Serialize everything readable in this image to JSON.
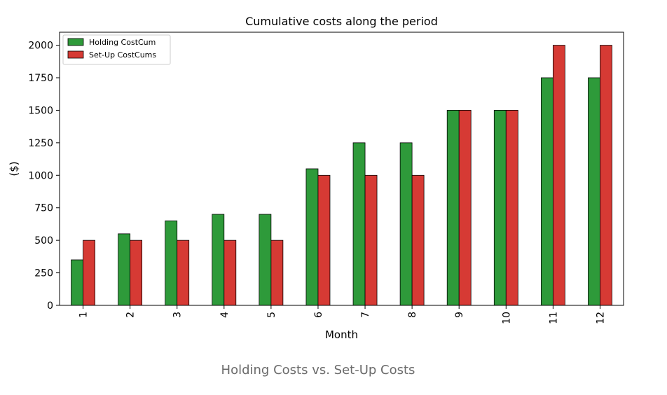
{
  "caption": "Holding Costs vs. Set-Up Costs",
  "chart_data": {
    "type": "bar",
    "title": "Cumulative costs along the period",
    "xlabel": "Month",
    "ylabel": "($)",
    "categories": [
      "1",
      "2",
      "3",
      "4",
      "5",
      "6",
      "7",
      "8",
      "9",
      "10",
      "11",
      "12"
    ],
    "series": [
      {
        "name": "Holding CostCum",
        "color": "#2e9a3a",
        "values": [
          350,
          550,
          650,
          700,
          700,
          1050,
          1250,
          1250,
          1500,
          1500,
          1750,
          1750
        ]
      },
      {
        "name": "Set-Up CostCums",
        "color": "#d63a34",
        "values": [
          500,
          500,
          500,
          500,
          500,
          1000,
          1000,
          1000,
          1500,
          1500,
          2000,
          2000
        ]
      }
    ],
    "ylim": [
      0,
      2100
    ],
    "yticks": [
      0,
      250,
      500,
      750,
      1000,
      1250,
      1500,
      1750,
      2000
    ],
    "grid": false,
    "legend": "top-left"
  }
}
